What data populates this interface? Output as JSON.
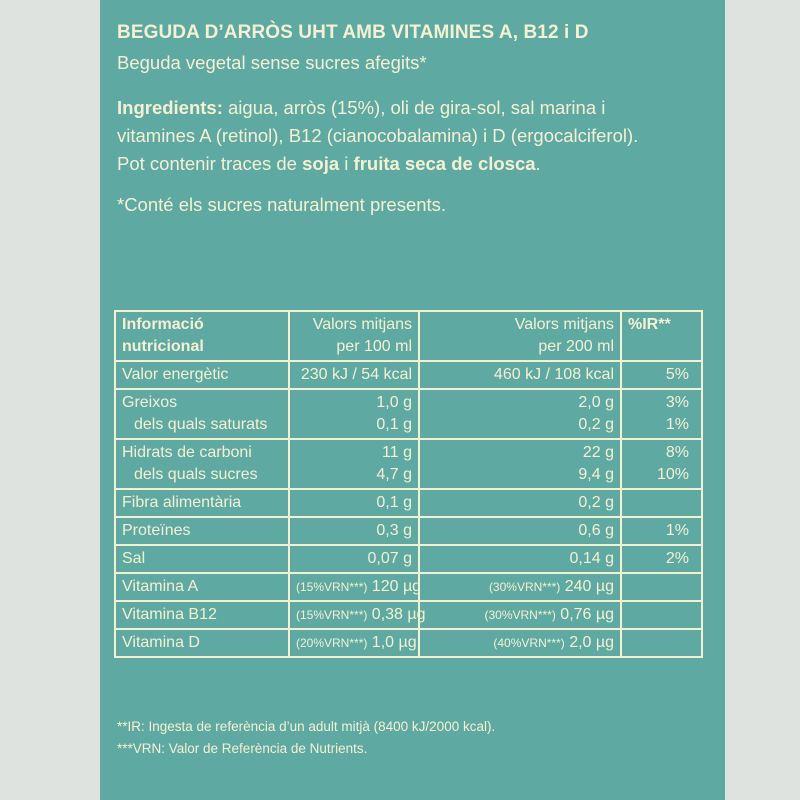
{
  "headline": "BEGUDA D’ARRÒS UHT AMB VITAMINES A, B12 i D",
  "subtitle": "Beguda vegetal sense sucres afegits*",
  "ingredients": {
    "label": "Ingredients:",
    "line1_rest": " aigua, arròs (15%), oli de gira-sol, sal marina i",
    "line2": "vitamines A (retinol), B12 (cianocobalamina) i D (ergocalciferol).",
    "line3_a": "Pot contenir traces de ",
    "line3_b": "soja",
    "line3_c": " i ",
    "line3_d": "fruita seca de closca",
    "line3_e": "."
  },
  "sugar_note": "*Conté els sucres naturalment presents.",
  "table": {
    "header": {
      "name_1": "Informació",
      "name_2": "nutricional",
      "col100_1": "Valors mitjans",
      "col100_2": "per 100 ml",
      "col200_1": "Valors mitjans",
      "col200_2": "per 200 ml",
      "ir": "%IR**"
    },
    "energy": {
      "name": "Valor energètic",
      "v100": "230 kJ / 54 kcal",
      "v200": "460 kJ / 108 kcal",
      "ir": "5%"
    },
    "fat": {
      "name": "Greixos",
      "v100": "1,0 g",
      "v200": "2,0 g",
      "ir": "3%",
      "sub_name": "dels quals saturats",
      "sub_v100": "0,1 g",
      "sub_v200": "0,2 g",
      "sub_ir": "1%"
    },
    "carbs": {
      "name": "Hidrats de carboni",
      "v100": "11 g",
      "v200": "22 g",
      "ir": "8%",
      "sub_name": "dels quals sucres",
      "sub_v100": "4,7 g",
      "sub_v200": "9,4 g",
      "sub_ir": "10%"
    },
    "fibre": {
      "name": "Fibra alimentària",
      "v100": "0,1 g",
      "v200": "0,2 g",
      "ir": ""
    },
    "protein": {
      "name": "Proteïnes",
      "v100": "0,3 g",
      "v200": "0,6 g",
      "ir": "1%"
    },
    "salt": {
      "name": "Sal",
      "v100": "0,07 g",
      "v200": "0,14 g",
      "ir": "2%"
    },
    "vit_a": {
      "name": "Vitamina A",
      "vrn100": "(15%VRN***)",
      "v100": " 120 µg",
      "vrn200": "(30%VRN***)",
      "v200": " 240 µg"
    },
    "vit_b12": {
      "name": "Vitamina B12",
      "vrn100": "(15%VRN***)",
      "v100": " 0,38 µg",
      "vrn200": "(30%VRN***)",
      "v200": " 0,76 µg"
    },
    "vit_d": {
      "name": "Vitamina D",
      "vrn100": "(20%VRN***)",
      "v100": " 1,0 µg",
      "vrn200": "(40%VRN***)",
      "v200": " 2,0 µg"
    }
  },
  "footnotes": {
    "ir": "**IR: Ingesta de referència d’un adult mitjà (8400 kJ/2000 kcal).",
    "vrn": "***VRN: Valor de Referència de Nutrients."
  },
  "colors": {
    "panel": "#5fa9a3",
    "ink": "#f4f1d2",
    "background": "#dfe3e0"
  }
}
